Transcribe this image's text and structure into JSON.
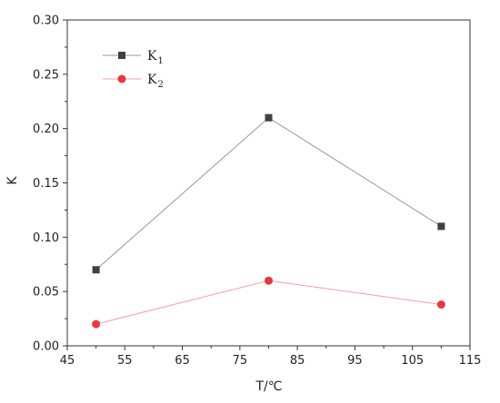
{
  "chart_data": {
    "type": "line",
    "xlabel": "T/℃",
    "ylabel": "K",
    "xlim": [
      45,
      115
    ],
    "ylim": [
      0.0,
      0.3
    ],
    "x_ticks": [
      45,
      55,
      65,
      75,
      85,
      95,
      105,
      115
    ],
    "y_ticks": [
      0.0,
      0.05,
      0.1,
      0.15,
      0.2,
      0.25,
      0.3
    ],
    "x_tick_labels": [
      "45",
      "55",
      "65",
      "75",
      "85",
      "95",
      "105",
      "115"
    ],
    "y_tick_labels": [
      "0.00",
      "0.05",
      "0.10",
      "0.15",
      "0.20",
      "0.25",
      "0.30"
    ],
    "legend_position": "top-left",
    "grid": false,
    "series": [
      {
        "name": "K1",
        "legend_main": "K",
        "legend_sub": "1",
        "marker": "square",
        "line_color": "#999999",
        "marker_color": "#404040",
        "x": [
          50,
          80,
          110
        ],
        "y": [
          0.07,
          0.21,
          0.11
        ]
      },
      {
        "name": "K2",
        "legend_main": "K",
        "legend_sub": "2",
        "marker": "circle",
        "line_color": "#f3a0a0",
        "marker_color": "#e8383d",
        "x": [
          50,
          80,
          110
        ],
        "y": [
          0.02,
          0.06,
          0.038
        ]
      }
    ]
  }
}
